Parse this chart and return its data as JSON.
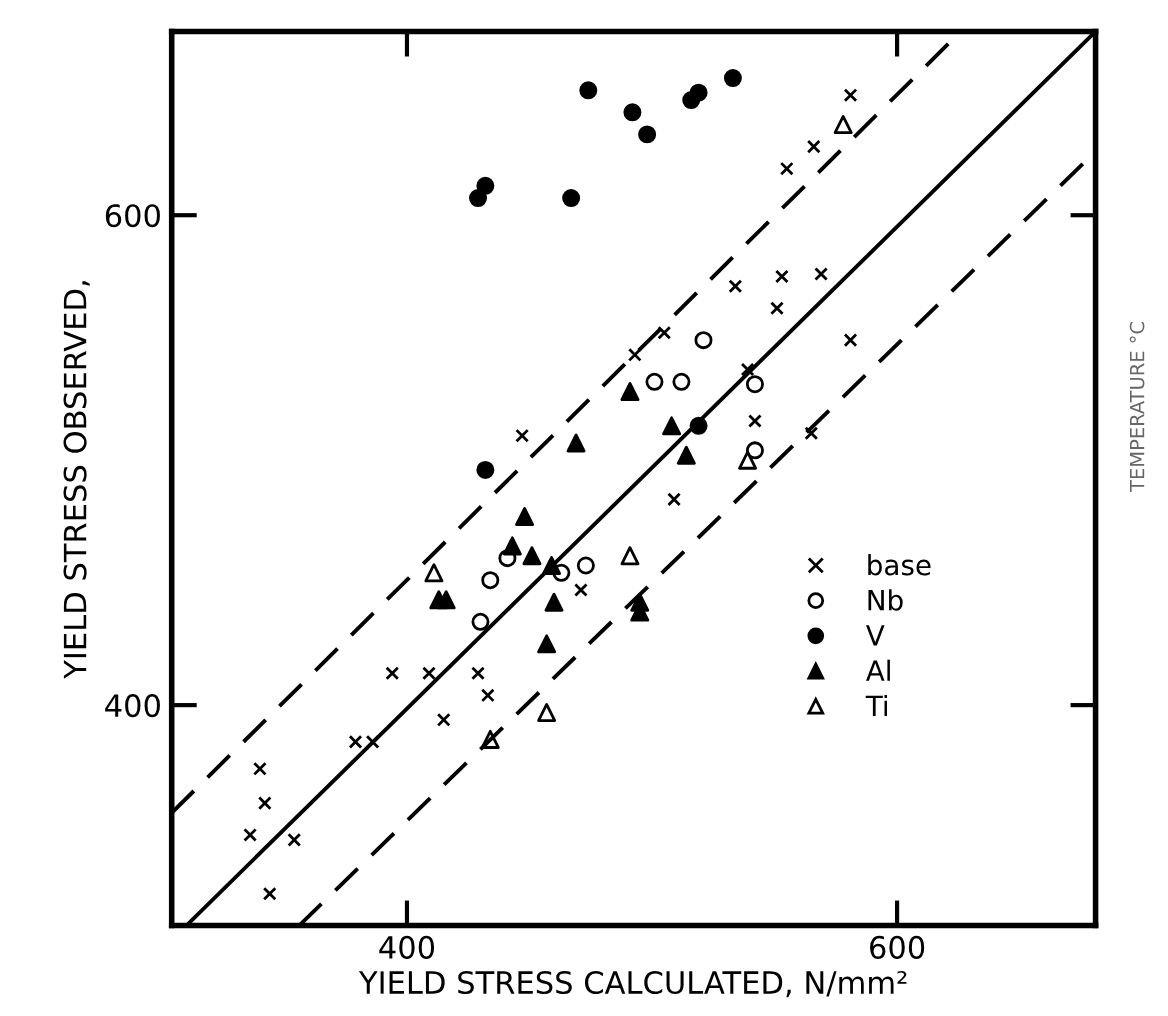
{
  "chart_data": {
    "type": "scatter",
    "xlabel": "YIELD STRESS CALCULATED, N/mm²",
    "ylabel": "YIELD STRESS OBSERVED,",
    "annotations": [
      "TEMPERATURE °C"
    ],
    "xlim": [
      304,
      681
    ],
    "ylim": [
      310,
      675
    ],
    "xticks": [
      400,
      600
    ],
    "yticks": [
      400,
      600
    ],
    "grid": false,
    "legend": "lower right",
    "series": [
      {
        "name": "base",
        "color": "#000000",
        "marker": "cross",
        "x": [
          340,
          342,
          336,
          354,
          344,
          394,
          415,
          433,
          429,
          379,
          386,
          409,
          471,
          534,
          553,
          551,
          569,
          505,
          493,
          509,
          542,
          581,
          447,
          565,
          539,
          581,
          555,
          566
        ],
        "values": [
          374,
          360,
          347,
          345,
          323,
          413,
          394,
          404,
          413,
          385,
          385,
          413,
          447,
          571,
          575,
          562,
          576,
          552,
          543,
          484,
          516,
          549,
          510,
          511,
          537,
          649,
          619,
          628
        ]
      },
      {
        "name": "Nb",
        "color": "#ffffff",
        "marker": "circle",
        "x": [
          521,
          512,
          542,
          501,
          542,
          434,
          430,
          473,
          441,
          463
        ],
        "values": [
          549,
          532,
          531,
          532,
          504,
          451,
          434,
          457,
          460,
          454
        ]
      },
      {
        "name": "V",
        "color": "#000000",
        "marker": "circle",
        "x": [
          474,
          492,
          498,
          516,
          519,
          533,
          432,
          429,
          467,
          432,
          519
        ],
        "values": [
          651,
          642,
          633,
          647,
          650,
          656,
          612,
          607,
          607,
          496,
          514
        ]
      },
      {
        "name": "Al",
        "color": "#000000",
        "marker": "triangle",
        "x": [
          491,
          514,
          508,
          469,
          413,
          416,
          451,
          460,
          457,
          495,
          495,
          448,
          459,
          443
        ],
        "values": [
          528,
          502,
          514,
          507,
          443,
          443,
          461,
          442,
          425,
          438,
          442,
          477,
          457,
          465
        ]
      },
      {
        "name": "Ti",
        "color": "#ffffff",
        "marker": "triangle",
        "x": [
          411,
          457,
          434,
          491,
          539,
          578
        ],
        "values": [
          454,
          397,
          386,
          461,
          500,
          637
        ]
      },
      {
        "type": "line",
        "color": "#000000",
        "line_style": "solid",
        "x": [
          310,
          681
        ],
        "values": [
          310,
          675
        ]
      },
      {
        "type": "line",
        "color": "#000000",
        "line_style": "dashed",
        "x": [
          304,
          626
        ],
        "values": [
          356,
          675
        ]
      },
      {
        "type": "line",
        "color": "#000000",
        "line_style": "dashed",
        "x": [
          356,
          681
        ],
        "values": [
          310,
          626
        ]
      }
    ]
  }
}
